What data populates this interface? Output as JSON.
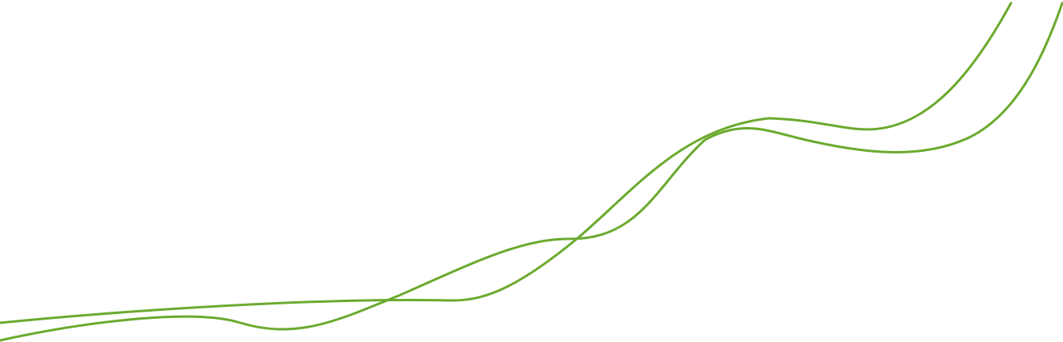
{
  "decoration": {
    "line_color": "#6aaa2e",
    "lines": [
      {
        "name": "wave-line-upper"
      },
      {
        "name": "wave-line-lower"
      }
    ]
  }
}
